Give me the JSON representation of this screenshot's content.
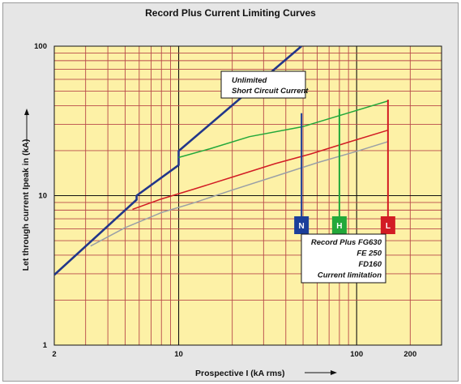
{
  "chart_data": {
    "type": "line",
    "title": "Record Plus Current Limiting Curves",
    "xlabel": "Prospective I (kA rms)",
    "ylabel": "Let through current Ipeak in (kA)",
    "x_scale": "log",
    "y_scale": "log",
    "xlim": [
      2,
      300
    ],
    "ylim": [
      1,
      100
    ],
    "x_tick_labels": [
      "2",
      "10",
      "100",
      "200"
    ],
    "y_tick_labels": [
      "1",
      "10",
      "100"
    ],
    "grid": true,
    "colors": {
      "plot_bg": "#fdf1a6",
      "grid_minor": "#b84a4a",
      "grid_major": "#111111",
      "unlimited": "#22368a",
      "N": "#1b3e9a",
      "H": "#22a83a",
      "L": "#d21c24",
      "gray_curve": "#9aa0a6"
    },
    "annotations": {
      "unlimited": [
        "Unlimited",
        "Short Circuit Current"
      ],
      "limitation": [
        "Record Plus FG630",
        "FE 250",
        "FD160",
        "Current limitation"
      ]
    },
    "series": [
      {
        "key": "unlimited",
        "label": "Unlimited Short Circuit Current",
        "points": [
          [
            2,
            2.95
          ],
          [
            5.8,
            9.4
          ],
          [
            5.8,
            10.0
          ],
          [
            10,
            16.0
          ],
          [
            10,
            19.9
          ],
          [
            49,
            100
          ]
        ]
      },
      {
        "key": "N",
        "label": "N",
        "points": [
          [
            10,
            18.0
          ],
          [
            15,
            20.6
          ],
          [
            25,
            24.8
          ],
          [
            48,
            28.7
          ],
          [
            50,
            29.0
          ],
          [
            150,
            43.0
          ]
        ]
      },
      {
        "key": "H",
        "label": "H",
        "points": [
          [
            5.5,
            8.1
          ],
          [
            8,
            9.5
          ],
          [
            12,
            11.0
          ],
          [
            20,
            13.3
          ],
          [
            35,
            16.4
          ],
          [
            55,
            19.0
          ],
          [
            90,
            22.8
          ],
          [
            150,
            27.4
          ]
        ]
      },
      {
        "key": "L",
        "label": "L",
        "points": [
          [
            3.2,
            4.6
          ],
          [
            5,
            6.1
          ],
          [
            8,
            7.7
          ],
          [
            12,
            8.9
          ],
          [
            20,
            10.9
          ],
          [
            35,
            13.5
          ],
          [
            60,
            16.6
          ],
          [
            100,
            19.8
          ],
          [
            150,
            23.0
          ]
        ]
      }
    ],
    "markers": [
      {
        "label": "N",
        "x": 49,
        "y_top": 35.6,
        "color": "N"
      },
      {
        "label": "H",
        "x": 80,
        "y_top": 38.1,
        "color": "H"
      },
      {
        "label": "L",
        "x": 150,
        "y_top": 43.9,
        "color": "L"
      }
    ]
  }
}
